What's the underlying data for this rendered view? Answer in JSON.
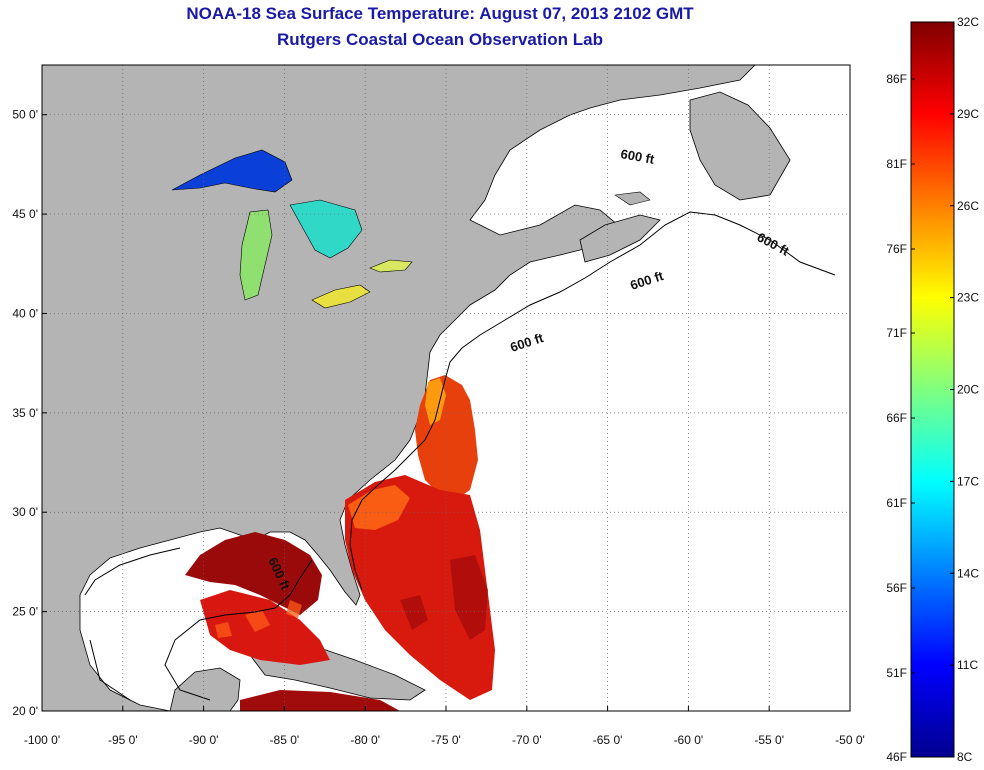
{
  "header": {
    "title": "NOAA-18 Sea Surface Temperature:  August 07, 2013 2102 GMT",
    "subtitle": "Rutgers Coastal Ocean Observation Lab"
  },
  "map": {
    "lon_range": [
      -100,
      -50
    ],
    "lat_range": [
      20,
      52.5
    ],
    "lon_ticks": [
      "-100 0'",
      "-95 0'",
      "-90 0'",
      "-85 0'",
      "-80 0'",
      "-75 0'",
      "-70 0'",
      "-65 0'",
      "-60 0'",
      "-55 0'",
      "-50 0'"
    ],
    "lat_ticks": [
      {
        "lat": 50,
        "label": "50 0'"
      },
      {
        "lat": 45,
        "label": "45 0'"
      },
      {
        "lat": 40,
        "label": "40 0'"
      },
      {
        "lat": 35,
        "label": "35 0'"
      },
      {
        "lat": 30,
        "label": "30 0'"
      },
      {
        "lat": 25,
        "label": "25 0'"
      },
      {
        "lat": 20,
        "label": "20 0'"
      }
    ],
    "land_color": "#b4b4b4",
    "ocean_color": "#ffffff",
    "grid": "dotted",
    "isobath_labels": [
      "600 ft",
      "600 ft",
      "600 ft",
      "600 ft",
      "600 ft"
    ]
  },
  "colorbar": {
    "celsius_labels": [
      "32C",
      "29C",
      "26C",
      "23C",
      "20C",
      "17C",
      "14C",
      "11C",
      "8C"
    ],
    "fahrenheit_labels": [
      "86F",
      "81F",
      "76F",
      "71F",
      "66F",
      "61F",
      "56F",
      "51F",
      "46F"
    ],
    "colormap": "jet",
    "range_c": [
      8,
      32
    ]
  }
}
